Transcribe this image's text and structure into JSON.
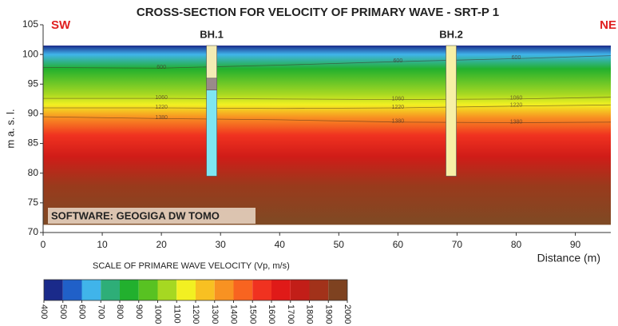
{
  "chart_data": {
    "type": "section",
    "title": "CROSS-SECTION FOR VELOCITY OF PRIMARY WAVE - SRT-P 1",
    "left_label": "SW",
    "right_label": "NE",
    "ylabel": "m a. s. l.",
    "xlabel": "Distance (m)",
    "annotation": "SOFTWARE: GEOGIGA DW TOMO",
    "xlim": [
      0,
      96
    ],
    "ylim": [
      70,
      105
    ],
    "xticks": [
      0,
      10,
      20,
      30,
      40,
      50,
      60,
      70,
      80,
      90
    ],
    "yticks": [
      70,
      75,
      80,
      85,
      90,
      95,
      100,
      105
    ],
    "field": {
      "top": 101.5,
      "bottom": 71.3
    },
    "contours": {
      "x": [
        0,
        20,
        40,
        60,
        80,
        96
      ],
      "lines": [
        {
          "level": 600,
          "y": [
            97.8,
            97.7,
            98.2,
            98.8,
            99.3,
            99.8
          ]
        },
        {
          "level": 1060,
          "y": [
            92.6,
            92.6,
            92.5,
            92.4,
            92.5,
            92.8
          ]
        },
        {
          "level": 1220,
          "y": [
            91,
            91,
            90.9,
            91,
            91.3,
            91.5
          ]
        },
        {
          "level": 1380,
          "y": [
            89.5,
            89.2,
            89,
            88.6,
            88.5,
            88.6
          ]
        }
      ]
    },
    "boreholes": [
      {
        "name": "BH.1",
        "x": 28.5,
        "layers": [
          {
            "top": 101.5,
            "bottom": 96,
            "color": "#f3ecb4"
          },
          {
            "top": 96,
            "bottom": 94,
            "color": "#9a8a8a"
          },
          {
            "top": 94,
            "bottom": 79.5,
            "color": "#7ee6f2"
          }
        ]
      },
      {
        "name": "BH.2",
        "x": 69,
        "layers": [
          {
            "top": 101.5,
            "bottom": 79.5,
            "color": "#f7f0a6"
          }
        ]
      }
    ],
    "colorbar": {
      "title": "SCALE OF PRIMARE WAVE VELOCITY (Vp, m/s)",
      "lim": [
        400,
        2000
      ],
      "ticks": [
        400,
        500,
        600,
        700,
        800,
        900,
        1000,
        1100,
        1200,
        1300,
        1400,
        1500,
        1600,
        1700,
        1800,
        1900,
        2000
      ],
      "colors": [
        "#1a2a8a",
        "#2060c8",
        "#40b4ea",
        "#2eae78",
        "#22b02e",
        "#58c222",
        "#a6d822",
        "#f2f022",
        "#f8c022",
        "#f89222",
        "#f86420",
        "#f03220",
        "#e01a18",
        "#c21e18",
        "#a2321a",
        "#7e4220"
      ]
    }
  }
}
